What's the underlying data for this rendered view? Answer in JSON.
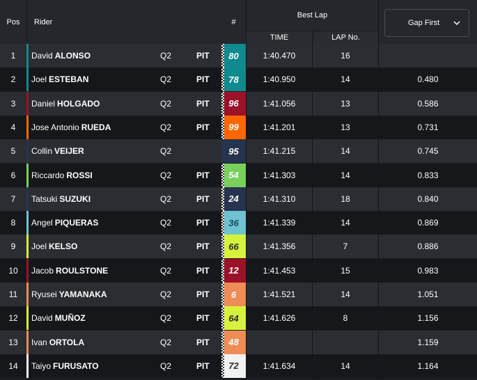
{
  "header": {
    "pos": "Pos",
    "rider": "Rider",
    "num": "#",
    "best_lap": "Best Lap",
    "time": "TIME",
    "lap_no": "LAP No.",
    "gap_select": "Gap First",
    "chevron_icon": "chevron-down-icon"
  },
  "colors": {
    "header_bg": "#25272c",
    "row_odd": "#2b2d32",
    "row_even": "#16171a"
  },
  "rows": [
    {
      "pos": "1",
      "first": "David",
      "last": "ALONSO",
      "session": "Q2",
      "pit": "PIT",
      "num": "80",
      "num_bg": "#0f8a8e",
      "num_fg": "#ffffff",
      "bar": "#0f8a8e",
      "checkered": true,
      "time": "1:40.470",
      "lap": "16",
      "gap": ""
    },
    {
      "pos": "2",
      "first": "Joel",
      "last": "ESTEBAN",
      "session": "Q2",
      "pit": "PIT",
      "num": "78",
      "num_bg": "#0f8a8e",
      "num_fg": "#ffffff",
      "bar": "#0f8a8e",
      "checkered": true,
      "time": "1:40.950",
      "lap": "14",
      "gap": "0.480"
    },
    {
      "pos": "3",
      "first": "Daniel",
      "last": "HOLGADO",
      "session": "Q2",
      "pit": "PIT",
      "num": "96",
      "num_bg": "#9c1229",
      "num_fg": "#ffffff",
      "bar": "#9c1229",
      "checkered": true,
      "time": "1:41.056",
      "lap": "13",
      "gap": "0.586"
    },
    {
      "pos": "4",
      "first": "Jose Antonio",
      "last": "RUEDA",
      "session": "Q2",
      "pit": "PIT",
      "num": "99",
      "num_bg": "#ff6600",
      "num_fg": "#ffffff",
      "bar": "#ff6600",
      "checkered": true,
      "time": "1:41.201",
      "lap": "13",
      "gap": "0.731"
    },
    {
      "pos": "5",
      "first": "Collin",
      "last": "VEIJER",
      "session": "Q2",
      "pit": "",
      "num": "95",
      "num_bg": "#27344f",
      "num_fg": "#ffffff",
      "bar": "#27344f",
      "checkered": false,
      "time": "1:41.215",
      "lap": "14",
      "gap": "0.745"
    },
    {
      "pos": "6",
      "first": "Riccardo",
      "last": "ROSSI",
      "session": "Q2",
      "pit": "PIT",
      "num": "54",
      "num_bg": "#78d05b",
      "num_fg": "#ffffff",
      "bar": "#78d05b",
      "checkered": true,
      "time": "1:41.303",
      "lap": "14",
      "gap": "0.833"
    },
    {
      "pos": "7",
      "first": "Tatsuki",
      "last": "SUZUKI",
      "session": "Q2",
      "pit": "PIT",
      "num": "24",
      "num_bg": "#27344f",
      "num_fg": "#ffffff",
      "bar": "#27344f",
      "checkered": true,
      "time": "1:41.310",
      "lap": "18",
      "gap": "0.840"
    },
    {
      "pos": "8",
      "first": "Angel",
      "last": "PIQUERAS",
      "session": "Q2",
      "pit": "PIT",
      "num": "36",
      "num_bg": "#6ec3d1",
      "num_fg": "#1b4a5c",
      "bar": "#6ec3d1",
      "checkered": true,
      "time": "1:41.339",
      "lap": "14",
      "gap": "0.869"
    },
    {
      "pos": "9",
      "first": "Joel",
      "last": "KELSO",
      "session": "Q2",
      "pit": "PIT",
      "num": "66",
      "num_bg": "#d7f23c",
      "num_fg": "#2b2d32",
      "bar": "#d7f23c",
      "checkered": true,
      "time": "1:41.356",
      "lap": "7",
      "gap": "0.886"
    },
    {
      "pos": "10",
      "first": "Jacob",
      "last": "ROULSTONE",
      "session": "Q2",
      "pit": "PIT",
      "num": "12",
      "num_bg": "#9c1229",
      "num_fg": "#ffffff",
      "bar": "#9c1229",
      "checkered": true,
      "time": "1:41.453",
      "lap": "15",
      "gap": "0.983"
    },
    {
      "pos": "11",
      "first": "Ryusei",
      "last": "YAMANAKA",
      "session": "Q2",
      "pit": "PIT",
      "num": "6",
      "num_bg": "#ef8c55",
      "num_fg": "#ffffff",
      "bar": "#ef8c55",
      "checkered": true,
      "time": "1:41.521",
      "lap": "14",
      "gap": "1.051"
    },
    {
      "pos": "12",
      "first": "David",
      "last": "MUÑOZ",
      "session": "Q2",
      "pit": "PIT",
      "num": "64",
      "num_bg": "#d7f23c",
      "num_fg": "#2b2d32",
      "bar": "#d7f23c",
      "checkered": true,
      "time": "1:41.626",
      "lap": "8",
      "gap": "1.156"
    },
    {
      "pos": "13",
      "first": "Ivan",
      "last": "ORTOLA",
      "session": "Q2",
      "pit": "PIT",
      "num": "48",
      "num_bg": "#ef8c55",
      "num_fg": "#ffffff",
      "bar": "#ef8c55",
      "checkered": true,
      "time": "",
      "lap": "",
      "gap": "1.159"
    },
    {
      "pos": "14",
      "first": "Taiyo",
      "last": "FURUSATO",
      "session": "Q2",
      "pit": "PIT",
      "num": "72",
      "num_bg": "#f2f2f2",
      "num_fg": "#2b2d32",
      "bar": "#f2f2f2",
      "checkered": true,
      "time": "1:41.634",
      "lap": "14",
      "gap": "1.164"
    }
  ]
}
